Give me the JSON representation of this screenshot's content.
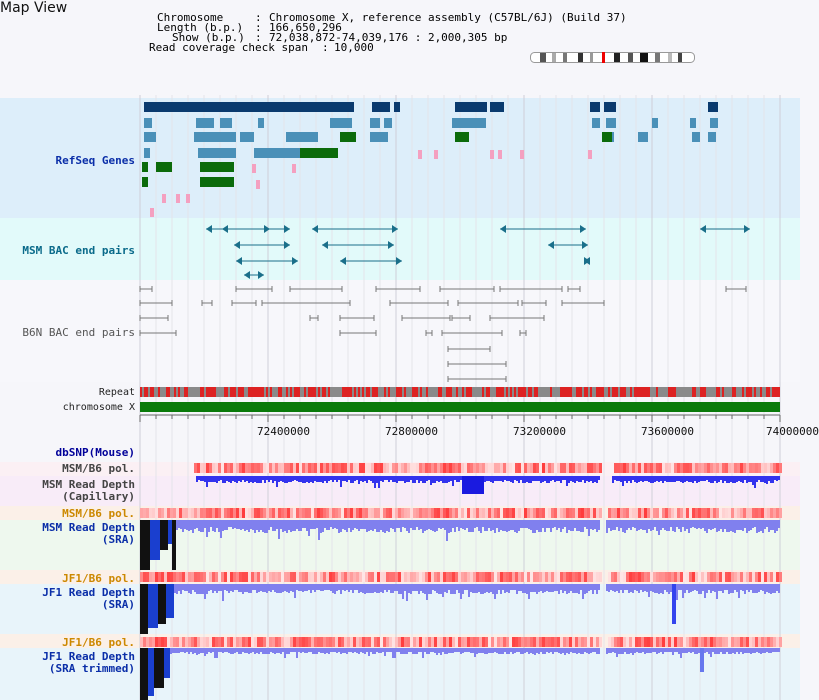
{
  "page_title": "Map View",
  "info": {
    "chromosome_label": "Chromosome",
    "chromosome_value": "Chromosome X, reference assembly (C57BL/6J) (Build 37)",
    "length_label": "Length (b.p.)",
    "length_value": "166,650,296",
    "show_label": "Show (b.p.)",
    "show_value": "72,038,872-74,039,176 : 2,000,305 bp",
    "span_label": "Read coverage check span",
    "span_value": "10,000"
  },
  "tracks": {
    "refseq": "RefSeq Genes",
    "msm_bac": "MSM BAC end pairs",
    "b6n_bac": "B6N BAC end pairs",
    "repeat": "Repeat",
    "chromosome": "chromosome X",
    "dbsnp": "dbSNP(Mouse)",
    "msm_pol_1": "MSM/B6 pol.",
    "msm_depth_cap_1": "MSM Read Depth",
    "msm_depth_cap_2": "(Capillary)",
    "msm_pol_2": "MSM/B6 pol.",
    "msm_depth_sra_1": "MSM Read Depth",
    "msm_depth_sra_2": "(SRA)",
    "jf1_pol_1": "JF1/B6 pol.",
    "jf1_depth_sra_1": "JF1 Read Depth",
    "jf1_depth_sra_2": "(SRA)",
    "jf1_pol_2": "JF1/B6 pol.",
    "jf1_depth_trim_1": "JF1 Read Depth",
    "jf1_depth_trim_2": "(SRA trimmed)"
  },
  "axis": {
    "ticks": [
      "72400000",
      "72800000",
      "73200000",
      "73600000",
      "74000000"
    ]
  },
  "colors": {
    "refseq_bg": "#ddeefa",
    "msm_bac_bg": "#e2fafa",
    "gene_dark": "#0a3a6e",
    "gene_mid": "#4a90b8",
    "gene_green": "#0b6b0b",
    "gene_pink": "#f4a0c0",
    "bac_teal": "#1a6f8a",
    "bac_grey": "#777777",
    "repeat_red": "#dd2222",
    "chrom_green": "#0a7a0a",
    "dbsnp_label": "#000099",
    "pol_label_orange": "#cc8800",
    "depth_blue": "#3333ee",
    "depth_lav": "#8080ee"
  },
  "icons": [
    "ideogram-icon"
  ]
}
